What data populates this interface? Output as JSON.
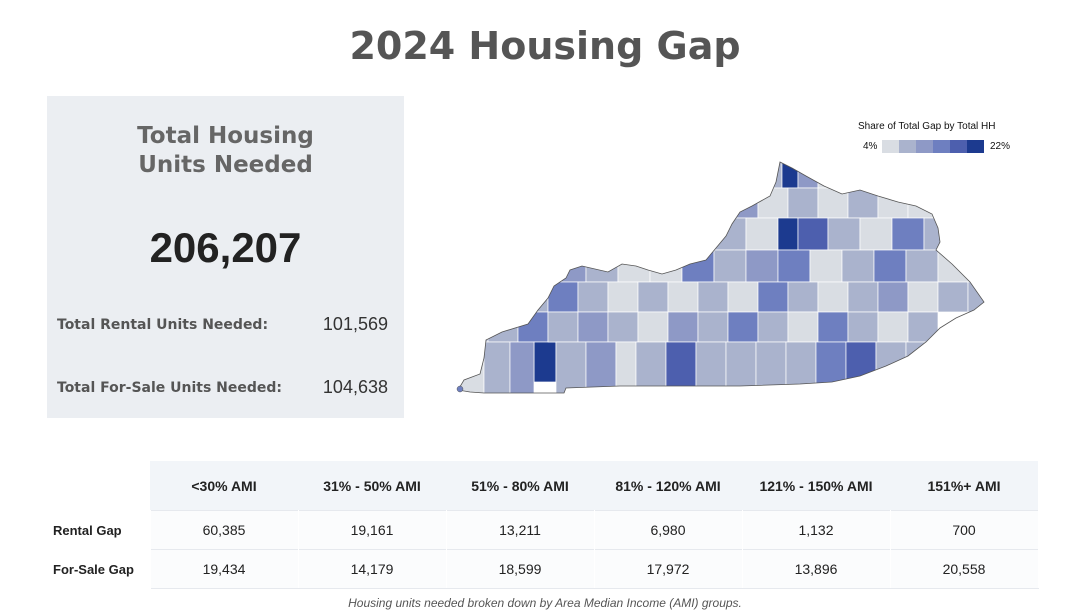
{
  "title": "2024 Housing Gap",
  "summary": {
    "heading_line1": "Total Housing",
    "heading_line2": "Units Needed",
    "total": "206,207",
    "rental_label": "Total Rental Units Needed:",
    "rental_value": "101,569",
    "forsale_label": "Total For-Sale Units Needed:",
    "forsale_value": "104,638"
  },
  "legend": {
    "title": "Share of Total Gap by Total HH",
    "min": "4%",
    "max": "22%",
    "colors": [
      "#d9dde3",
      "#aab3cd",
      "#8e99c6",
      "#6e7fc0",
      "#4d5fae",
      "#1c3a8f"
    ]
  },
  "table": {
    "columns": [
      "<30% AMI",
      "31% - 50% AMI",
      "51% - 80% AMI",
      "81% - 120% AMI",
      "121% - 150% AMI",
      "151%+ AMI"
    ],
    "rows": [
      {
        "label": "Rental Gap",
        "values": [
          "60,385",
          "19,161",
          "13,211",
          "6,980",
          "1,132",
          "700"
        ]
      },
      {
        "label": "For-Sale Gap",
        "values": [
          "19,434",
          "14,179",
          "18,599",
          "17,972",
          "13,896",
          "20,558"
        ]
      }
    ]
  },
  "caption": "Housing units needed broken down by Area Median Income (AMI) groups."
}
